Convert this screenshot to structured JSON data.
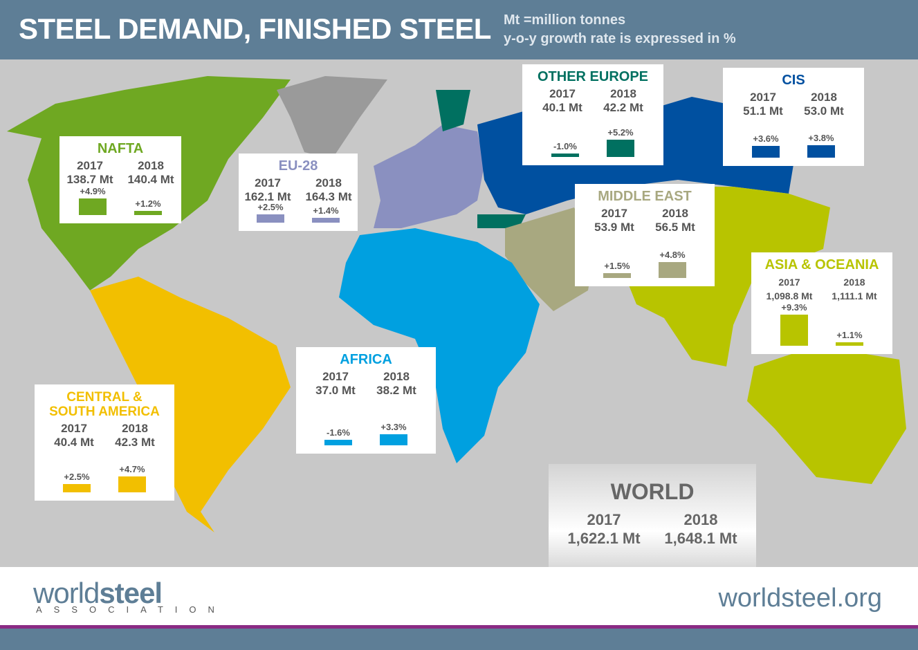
{
  "header": {
    "title": "STEEL DEMAND, FINISHED STEEL",
    "note1": "Mt =million tonnes",
    "note2": "y-o-y growth rate is expressed in %"
  },
  "regions": [
    {
      "name": "NAFTA",
      "color": "#6fa822",
      "y1": "2017",
      "y2": "2018",
      "v1": "138.7 Mt",
      "v2": "140.4 Mt",
      "g1": "+4.9%",
      "g2": "+1.2%",
      "g1n": 4.9,
      "g2n": 1.2
    },
    {
      "name": "EU-28",
      "color": "#8a90c0",
      "y1": "2017",
      "y2": "2018",
      "v1": "162.1 Mt",
      "v2": "164.3 Mt",
      "g1": "+2.5%",
      "g2": "+1.4%",
      "g1n": 2.5,
      "g2n": 1.4
    },
    {
      "name": "OTHER EUROPE",
      "color": "#007060",
      "y1": "2017",
      "y2": "2018",
      "v1": "40.1 Mt",
      "v2": "42.2 Mt",
      "g1": "-1.0%",
      "g2": "+5.2%",
      "g1n": -1.0,
      "g2n": 5.2
    },
    {
      "name": "CIS",
      "color": "#0050a0",
      "y1": "2017",
      "y2": "2018",
      "v1": "51.1 Mt",
      "v2": "53.0 Mt",
      "g1": "+3.6%",
      "g2": "+3.8%",
      "g1n": 3.6,
      "g2n": 3.8
    },
    {
      "name": "MIDDLE EAST",
      "color": "#a8a880",
      "y1": "2017",
      "y2": "2018",
      "v1": "53.9 Mt",
      "v2": "56.5 Mt",
      "g1": "+1.5%",
      "g2": "+4.8%",
      "g1n": 1.5,
      "g2n": 4.8
    },
    {
      "name": "ASIA & OCEANIA",
      "color": "#b8c400",
      "y1": "2017",
      "y2": "2018",
      "v1": "1,098.8 Mt",
      "v2": "1,111.1 Mt",
      "g1": "+9.3%",
      "g2": "+1.1%",
      "g1n": 9.3,
      "g2n": 1.1
    },
    {
      "name": "AFRICA",
      "color": "#00a0e0",
      "y1": "2017",
      "y2": "2018",
      "v1": "37.0 Mt",
      "v2": "38.2 Mt",
      "g1": "-1.6%",
      "g2": "+3.3%",
      "g1n": -1.6,
      "g2n": 3.3
    },
    {
      "name": "CENTRAL & SOUTH AMERICA",
      "color": "#f2bf00",
      "y1": "2017",
      "y2": "2018",
      "v1": "40.4 Mt",
      "v2": "42.3 Mt",
      "g1": "+2.5%",
      "g2": "+4.7%",
      "g1n": 2.5,
      "g2n": 4.7
    }
  ],
  "world": {
    "name": "WORLD",
    "y1": "2017",
    "y2": "2018",
    "v1": "1,622.1 Mt",
    "v2": "1,648.1 Mt"
  },
  "footer": {
    "logo_light": "world",
    "logo_bold": "steel",
    "logo_sub": "ASSOCIATION",
    "site": "worldsteel.org"
  }
}
